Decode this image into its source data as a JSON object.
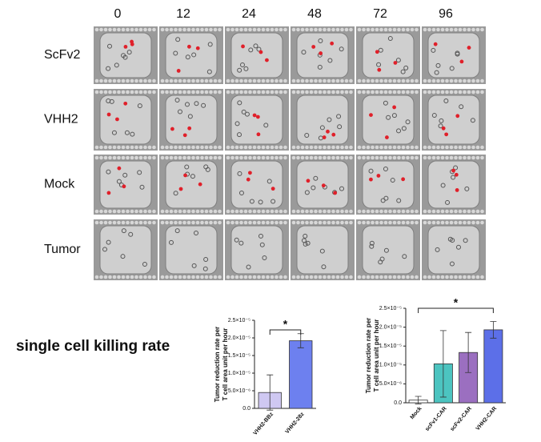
{
  "figure": {
    "time_labels": [
      "0",
      "12",
      "24",
      "48",
      "72",
      "96"
    ],
    "row_labels": [
      "ScFv2",
      "VHH2",
      "Mock",
      "Tumor"
    ],
    "caption": "single cell killing rate"
  },
  "chart_data": [
    {
      "type": "bar",
      "ylabel": [
        "Tumor reduction rate per",
        "T cell area unit per hour"
      ],
      "categories": [
        "VHH2-BBz",
        "VHH2-28z"
      ],
      "values": [
        4.5e-06,
        1.92e-05
      ],
      "errors": [
        5e-06,
        2e-06
      ],
      "colors": [
        "#cfc8f2",
        "#6d80ef"
      ],
      "ylim": [
        0,
        2.5e-05
      ],
      "yticks": [
        {
          "value": 0,
          "label": "0.0"
        },
        {
          "value": 5e-06,
          "label": "5.0×10⁻⁶"
        },
        {
          "value": 1e-05,
          "label": "1.0×10⁻⁵"
        },
        {
          "value": 1.5e-05,
          "label": "1.5×10⁻⁵"
        },
        {
          "value": 2e-05,
          "label": "2.0×10⁻⁵"
        },
        {
          "value": 2.5e-05,
          "label": "2.5×10⁻⁵"
        }
      ],
      "annotation": "*"
    },
    {
      "type": "bar",
      "ylabel": [
        "Tumor reduction rate per",
        "T cell area unit per hour"
      ],
      "categories": [
        "Mock",
        "scFv1-CAR",
        "scFv2-CAR",
        "VHH2-CAR"
      ],
      "values": [
        7e-07,
        1.03e-05,
        1.33e-05,
        1.93e-05
      ],
      "errors": [
        1e-06,
        8.8e-06,
        5.3e-06,
        2.2e-06
      ],
      "colors": [
        "#ffffff",
        "#4cc4c0",
        "#9b6fc0",
        "#5c6fe8"
      ],
      "ylim": [
        0,
        2.5e-05
      ],
      "yticks": [
        {
          "value": 0,
          "label": "0.0"
        },
        {
          "value": 5e-06,
          "label": "5.0×10⁻⁶"
        },
        {
          "value": 1e-05,
          "label": "1.0×10⁻⁵"
        },
        {
          "value": 1.5e-05,
          "label": "1.5×10⁻⁵"
        },
        {
          "value": 2e-05,
          "label": "2.0×10⁻⁵"
        },
        {
          "value": 2.5e-05,
          "label": "2.5×10⁻⁵"
        }
      ],
      "annotation": "*"
    }
  ]
}
